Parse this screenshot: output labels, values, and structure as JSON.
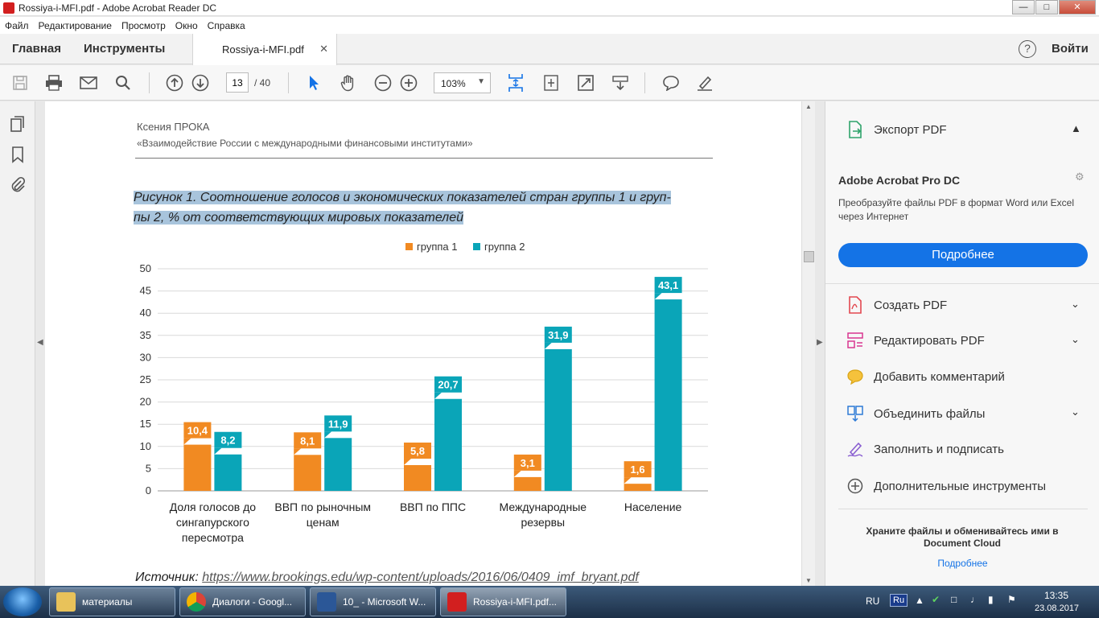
{
  "window": {
    "title": "Rossiya-i-MFI.pdf - Adobe Acrobat Reader DC"
  },
  "menu": [
    "Файл",
    "Редактирование",
    "Просмотр",
    "Окно",
    "Справка"
  ],
  "tabs": {
    "home": "Главная",
    "tools": "Инструменты",
    "document": "Rossiya-i-MFI.pdf",
    "signin": "Войти"
  },
  "toolbar": {
    "page_current": "13",
    "page_total": "/ 40",
    "zoom": "103%"
  },
  "document": {
    "author": "Ксения ПРОКА",
    "subtitle": "«Взаимодействие России с международными финансовыми институтами»",
    "caption_line1": "Рисунок 1. Соотношение голосов и экономических показателей стран группы 1 и груп-",
    "caption_line2": "пы 2, % от соответствующих мировых показателей",
    "source_label": "Источник:",
    "source_url": "https://www.brookings.edu/wp-content/uploads/2016/06/0409_imf_bryant.pdf"
  },
  "chart_data": {
    "type": "bar",
    "categories": [
      [
        "Доля голосов до",
        "сингапурского",
        "пересмотра"
      ],
      [
        "ВВП по рыночным",
        "ценам"
      ],
      [
        "ВВП по ППС"
      ],
      [
        "Международные",
        "резервы"
      ],
      [
        "Население"
      ]
    ],
    "series": [
      {
        "name": "группа 1",
        "color": "#f18a22",
        "values": [
          10.4,
          8.1,
          5.8,
          3.1,
          1.6
        ],
        "labels": [
          "10,4",
          "8,1",
          "5,8",
          "3,1",
          "1,6"
        ]
      },
      {
        "name": "группа 2",
        "color": "#0aa5b8",
        "values": [
          8.2,
          11.9,
          20.7,
          31.9,
          43.1
        ],
        "labels": [
          "8,2",
          "11,9",
          "20,7",
          "31,9",
          "43,1"
        ]
      }
    ],
    "ylim": [
      0,
      50
    ],
    "yticks": [
      "0",
      "5",
      "10",
      "15",
      "20",
      "25",
      "30",
      "35",
      "40",
      "45",
      "50"
    ],
    "legend": "top",
    "grid": true
  },
  "rightpanel": {
    "export": "Экспорт PDF",
    "promo_title": "Adobe Acrobat Pro DC",
    "promo_text": "Преобразуйте файлы PDF в формат Word или Excel через Интернет",
    "promo_button": "Подробнее",
    "tools": [
      "Создать PDF",
      "Редактировать PDF",
      "Добавить комментарий",
      "Объединить файлы",
      "Заполнить и подписать",
      "Дополнительные инструменты"
    ],
    "cloud_text": "Храните файлы и обменивайтесь ими в Document Cloud",
    "cloud_link": "Подробнее"
  },
  "taskbar": {
    "items": [
      "материалы",
      "Диалоги - Googl...",
      "10_ - Microsoft W...",
      "Rossiya-i-MFI.pdf..."
    ],
    "lang": "RU",
    "kb": "Ru",
    "time": "13:35",
    "date": "23.08.2017"
  }
}
